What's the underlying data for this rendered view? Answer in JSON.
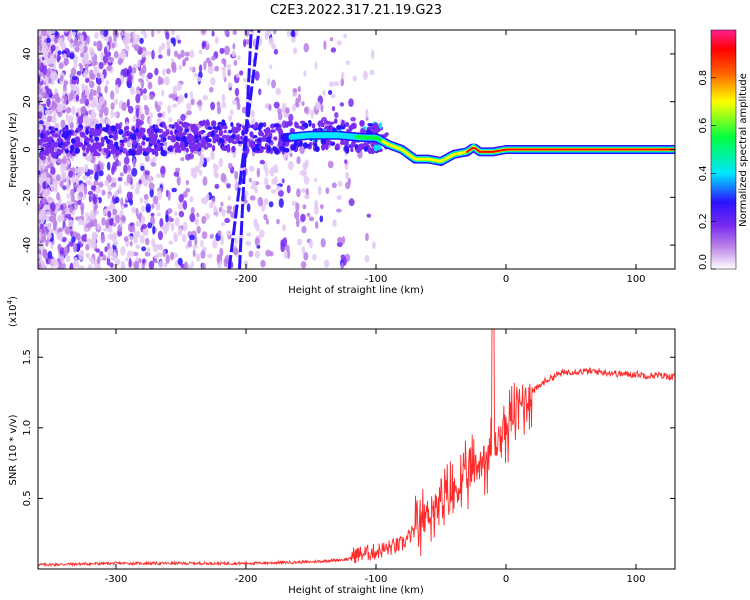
{
  "figure": {
    "title": "C2E3.2022.317.21.19.G23"
  },
  "chart_data": [
    {
      "type": "heatmap",
      "xlabel": "Height of straight line (km)",
      "ylabel": "Frequency (Hz)",
      "xlim": [
        -360,
        130
      ],
      "ylim": [
        -50,
        50
      ],
      "xticks": [
        -300,
        -200,
        -100,
        0,
        100
      ],
      "yticks": [
        -40,
        -20,
        0,
        20,
        40
      ],
      "grid": false,
      "colorbar": {
        "label": "Normalized spectral amplitude",
        "range": [
          0,
          1
        ],
        "ticks": [
          0.0,
          0.2,
          0.4,
          0.6,
          0.8
        ],
        "colors": [
          "#ffffff",
          "#e3c8f5",
          "#b77be6",
          "#7a2cf0",
          "#2a12ff",
          "#00e6ff",
          "#00ff40",
          "#ffff00",
          "#ff6000",
          "#ff0000",
          "#ff2090"
        ]
      },
      "ridge": [
        [
          -360,
          3
        ],
        [
          -300,
          4
        ],
        [
          -280,
          3
        ],
        [
          -260,
          5
        ],
        [
          -220,
          6
        ],
        [
          -200,
          5
        ],
        [
          -170,
          5
        ],
        [
          -150,
          6
        ],
        [
          -130,
          6
        ],
        [
          -110,
          5
        ],
        [
          -100,
          5
        ],
        [
          -90,
          2
        ],
        [
          -80,
          0
        ],
        [
          -70,
          -4
        ],
        [
          -60,
          -4
        ],
        [
          -50,
          -5
        ],
        [
          -40,
          -2
        ],
        [
          -30,
          -1
        ],
        [
          -25,
          1
        ],
        [
          -20,
          -1
        ],
        [
          -10,
          -1
        ],
        [
          0,
          0
        ],
        [
          130,
          0
        ]
      ],
      "streaks": [
        {
          "x": [
            -213,
            -190
          ],
          "y": [
            -50,
            50
          ]
        },
        {
          "x": [
            -205,
            -196
          ],
          "y": [
            -50,
            50
          ]
        }
      ]
    },
    {
      "type": "line",
      "xlabel": "Height of straight line (km)",
      "ylabel": "SNR (10 * v/v)",
      "scale_label": "(x10",
      "scale_exp": "4",
      "scale_close": ")",
      "xlim": [
        -360,
        130
      ],
      "ylim": [
        0,
        1.7
      ],
      "xticks": [
        -300,
        -200,
        -100,
        0,
        100
      ],
      "yticks": [
        0.5,
        1.0,
        1.5
      ],
      "ytick_labels": [
        "0.5",
        "1.0",
        "1.5"
      ],
      "grid": false,
      "series": [
        {
          "color": "#ff2a2a",
          "x": [
            -360,
            -300,
            -200,
            -150,
            -120,
            -100,
            -80,
            -70,
            -60,
            -50,
            -40,
            -30,
            -20,
            -10,
            0,
            10,
            20,
            30,
            40,
            50,
            60,
            70,
            80,
            90,
            100,
            110,
            120,
            130
          ],
          "y": [
            0.03,
            0.04,
            0.04,
            0.05,
            0.07,
            0.1,
            0.15,
            0.25,
            0.4,
            0.45,
            0.55,
            0.65,
            0.75,
            0.85,
            1.0,
            1.15,
            1.25,
            1.33,
            1.38,
            1.4,
            1.4,
            1.4,
            1.39,
            1.38,
            1.38,
            1.37,
            1.37,
            1.36
          ]
        }
      ]
    }
  ]
}
